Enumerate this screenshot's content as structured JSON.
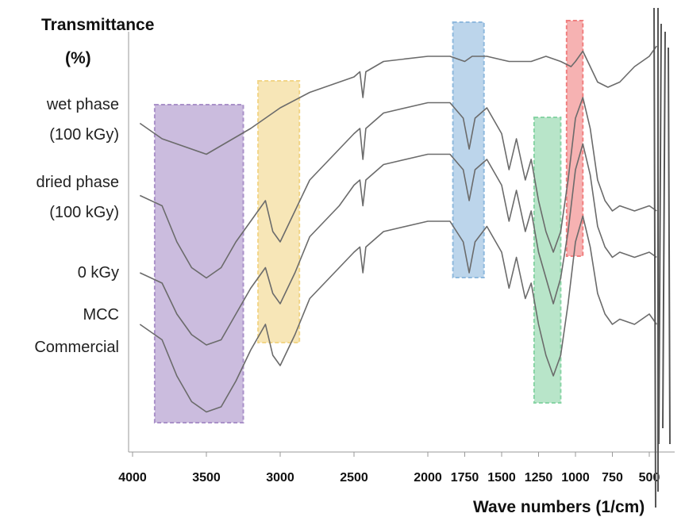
{
  "chart_data": {
    "type": "line",
    "ylabel": [
      "Transmittance",
      "(%)"
    ],
    "xlabel": "Wave numbers (1/cm)",
    "x_ticks": [
      4000,
      3500,
      3000,
      2500,
      2000,
      1750,
      1500,
      1250,
      1000,
      750,
      500
    ],
    "series": [
      {
        "name": "wet phase (100 kGy)",
        "label_lines": [
          "wet phase",
          "(100 kGy)"
        ],
        "points": [
          [
            3950,
            63
          ],
          [
            3800,
            60
          ],
          [
            3500,
            57
          ],
          [
            3200,
            62
          ],
          [
            3000,
            66
          ],
          [
            2800,
            69
          ],
          [
            2500,
            72
          ],
          [
            2460,
            73
          ],
          [
            2440,
            68
          ],
          [
            2420,
            73
          ],
          [
            2300,
            75
          ],
          [
            2000,
            76
          ],
          [
            1850,
            76
          ],
          [
            1750,
            75
          ],
          [
            1700,
            76
          ],
          [
            1600,
            76
          ],
          [
            1450,
            75
          ],
          [
            1300,
            75
          ],
          [
            1200,
            76
          ],
          [
            1100,
            75
          ],
          [
            1030,
            74
          ],
          [
            1000,
            75
          ],
          [
            950,
            77
          ],
          [
            900,
            74
          ],
          [
            850,
            71
          ],
          [
            780,
            70
          ],
          [
            700,
            71
          ],
          [
            600,
            74
          ],
          [
            500,
            76
          ],
          [
            450,
            78
          ]
        ]
      },
      {
        "name": "dried phase (100 kGy)",
        "label_lines": [
          "dried phase",
          "(100 kGy)"
        ],
        "points": [
          [
            3950,
            49
          ],
          [
            3800,
            47
          ],
          [
            3700,
            40
          ],
          [
            3600,
            35
          ],
          [
            3500,
            33
          ],
          [
            3400,
            35
          ],
          [
            3300,
            40
          ],
          [
            3200,
            44
          ],
          [
            3100,
            48
          ],
          [
            3050,
            42
          ],
          [
            3000,
            40
          ],
          [
            2900,
            46
          ],
          [
            2800,
            52
          ],
          [
            2600,
            58
          ],
          [
            2500,
            61
          ],
          [
            2460,
            62
          ],
          [
            2440,
            56
          ],
          [
            2420,
            62
          ],
          [
            2300,
            65
          ],
          [
            2000,
            67
          ],
          [
            1850,
            67
          ],
          [
            1760,
            64
          ],
          [
            1720,
            58
          ],
          [
            1680,
            64
          ],
          [
            1600,
            66
          ],
          [
            1500,
            61
          ],
          [
            1450,
            54
          ],
          [
            1400,
            60
          ],
          [
            1340,
            52
          ],
          [
            1300,
            56
          ],
          [
            1250,
            48
          ],
          [
            1200,
            42
          ],
          [
            1150,
            38
          ],
          [
            1100,
            42
          ],
          [
            1050,
            52
          ],
          [
            1000,
            64
          ],
          [
            950,
            68
          ],
          [
            900,
            62
          ],
          [
            850,
            52
          ],
          [
            800,
            48
          ],
          [
            750,
            46
          ],
          [
            700,
            47
          ],
          [
            600,
            46
          ],
          [
            500,
            47
          ],
          [
            450,
            46
          ]
        ]
      },
      {
        "name": "0 kGy",
        "label_lines": [
          "0 kGy"
        ],
        "points": [
          [
            3950,
            34
          ],
          [
            3800,
            32
          ],
          [
            3700,
            26
          ],
          [
            3600,
            22
          ],
          [
            3500,
            20
          ],
          [
            3400,
            21
          ],
          [
            3300,
            26
          ],
          [
            3200,
            31
          ],
          [
            3100,
            35
          ],
          [
            3050,
            30
          ],
          [
            3000,
            28
          ],
          [
            2900,
            34
          ],
          [
            2800,
            41
          ],
          [
            2600,
            47
          ],
          [
            2500,
            51
          ],
          [
            2460,
            52
          ],
          [
            2440,
            47
          ],
          [
            2420,
            52
          ],
          [
            2300,
            55
          ],
          [
            2000,
            57
          ],
          [
            1850,
            57
          ],
          [
            1760,
            54
          ],
          [
            1720,
            48
          ],
          [
            1680,
            54
          ],
          [
            1600,
            56
          ],
          [
            1500,
            51
          ],
          [
            1450,
            44
          ],
          [
            1400,
            50
          ],
          [
            1340,
            42
          ],
          [
            1300,
            46
          ],
          [
            1250,
            38
          ],
          [
            1200,
            33
          ],
          [
            1150,
            28
          ],
          [
            1100,
            33
          ],
          [
            1050,
            42
          ],
          [
            1000,
            54
          ],
          [
            950,
            59
          ],
          [
            900,
            53
          ],
          [
            850,
            43
          ],
          [
            800,
            39
          ],
          [
            750,
            37
          ],
          [
            700,
            38
          ],
          [
            600,
            37
          ],
          [
            500,
            38
          ],
          [
            450,
            37
          ]
        ]
      },
      {
        "name": "MCC Commercial",
        "label_lines": [
          "MCC",
          "Commercial"
        ],
        "points": [
          [
            3950,
            24
          ],
          [
            3800,
            21
          ],
          [
            3700,
            14
          ],
          [
            3600,
            9
          ],
          [
            3500,
            7
          ],
          [
            3400,
            8
          ],
          [
            3300,
            13
          ],
          [
            3200,
            19
          ],
          [
            3100,
            24
          ],
          [
            3050,
            18
          ],
          [
            3000,
            16
          ],
          [
            2900,
            22
          ],
          [
            2800,
            29
          ],
          [
            2600,
            35
          ],
          [
            2500,
            38
          ],
          [
            2460,
            39
          ],
          [
            2440,
            34
          ],
          [
            2420,
            39
          ],
          [
            2300,
            42
          ],
          [
            2000,
            44
          ],
          [
            1850,
            44
          ],
          [
            1760,
            40
          ],
          [
            1720,
            34
          ],
          [
            1680,
            40
          ],
          [
            1600,
            43
          ],
          [
            1500,
            38
          ],
          [
            1450,
            31
          ],
          [
            1400,
            37
          ],
          [
            1340,
            29
          ],
          [
            1300,
            32
          ],
          [
            1250,
            24
          ],
          [
            1200,
            18
          ],
          [
            1150,
            14
          ],
          [
            1100,
            18
          ],
          [
            1050,
            28
          ],
          [
            1000,
            40
          ],
          [
            950,
            45
          ],
          [
            900,
            39
          ],
          [
            850,
            30
          ],
          [
            800,
            26
          ],
          [
            750,
            24
          ],
          [
            700,
            25
          ],
          [
            600,
            24
          ],
          [
            500,
            26
          ],
          [
            450,
            24
          ]
        ]
      }
    ],
    "highlight_bands": [
      {
        "xmin": 3250,
        "xmax": 3850,
        "color": "#a990c8"
      },
      {
        "xmin": 2870,
        "xmax": 3150,
        "color": "#f2d587"
      },
      {
        "xmin": 1620,
        "xmax": 1830,
        "color": "#8fb9dd"
      },
      {
        "xmin": 1100,
        "xmax": 1280,
        "color": "#88d4a5"
      },
      {
        "xmin": 950,
        "xmax": 1060,
        "color": "#f07f7f"
      }
    ]
  }
}
